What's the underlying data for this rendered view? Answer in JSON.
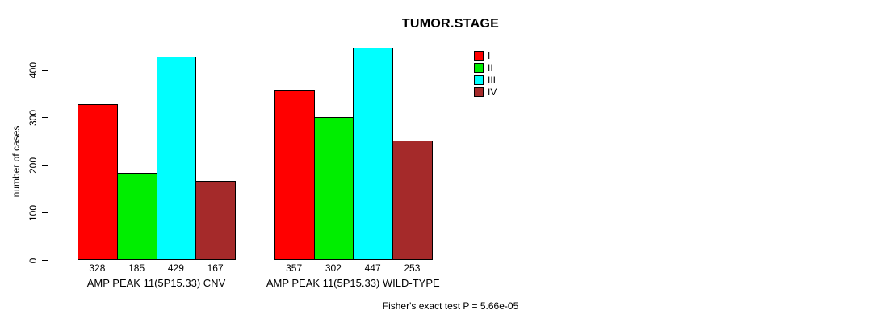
{
  "title": "TUMOR.STAGE",
  "footer_note": "Fisher's exact test P = 5.66e-05",
  "chart_data": {
    "type": "bar",
    "title": "TUMOR.STAGE",
    "xlabel": "",
    "ylabel": "number of cases",
    "ylim": [
      0,
      400
    ],
    "yticks": [
      0,
      100,
      200,
      300,
      400
    ],
    "grid": false,
    "bar_value_labels": true,
    "legend_position": "top-right",
    "categories": [
      "AMP PEAK 11(5P15.33) CNV",
      "AMP PEAK 11(5P15.33) WILD-TYPE"
    ],
    "series": [
      {
        "name": "I",
        "color": "#ff0000",
        "values": [
          328,
          357
        ]
      },
      {
        "name": "II",
        "color": "#00ee00",
        "values": [
          185,
          302
        ]
      },
      {
        "name": "III",
        "color": "#00ffff",
        "values": [
          429,
          447
        ]
      },
      {
        "name": "IV",
        "color": "#a52a2a",
        "values": [
          167,
          253
        ]
      }
    ],
    "annotation": "Fisher's exact test P = 5.66e-05"
  }
}
